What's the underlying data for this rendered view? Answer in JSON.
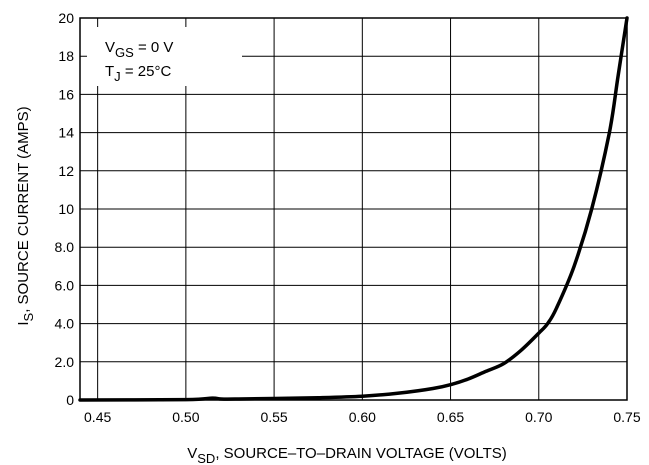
{
  "chart_data": {
    "type": "line",
    "xlabel": {
      "main": "V",
      "sub": "SD",
      "rest": ", SOURCE–TO–DRAIN VOLTAGE (VOLTS)"
    },
    "ylabel": {
      "main": "I",
      "sub": "S",
      "rest": ", SOURCE CURRENT (AMPS)"
    },
    "xlim": [
      0.44,
      0.75
    ],
    "ylim": [
      0,
      20
    ],
    "x_ticks": [
      0.45,
      0.5,
      0.55,
      0.6,
      0.65,
      0.7,
      0.75
    ],
    "x_tick_labels": [
      "0.45",
      "0.50",
      "0.55",
      "0.60",
      "0.65",
      "0.70",
      "0.75"
    ],
    "y_ticks": [
      0,
      2,
      4,
      6,
      8,
      10,
      12,
      14,
      16,
      18,
      20
    ],
    "y_tick_labels": [
      "0",
      "2.0",
      "4.0",
      "6.0",
      "8.0",
      "10",
      "12",
      "14",
      "16",
      "18",
      "20"
    ],
    "grid": true,
    "annotations": [
      {
        "main": "V",
        "sub": "GS",
        "rest": " = 0 V"
      },
      {
        "main": "T",
        "sub": "J",
        "rest": " = 25°C"
      }
    ],
    "series": [
      {
        "x": [
          0.44,
          0.5,
          0.515,
          0.52,
          0.53,
          0.55,
          0.575,
          0.6,
          0.62,
          0.64,
          0.65,
          0.66,
          0.67,
          0.68,
          0.69,
          0.7,
          0.705,
          0.71,
          0.72,
          0.73,
          0.74,
          0.745,
          0.75
        ],
        "y": [
          0.0,
          0.02,
          0.1,
          0.05,
          0.05,
          0.08,
          0.12,
          0.2,
          0.35,
          0.6,
          0.8,
          1.1,
          1.5,
          1.9,
          2.6,
          3.5,
          4.0,
          4.8,
          7.0,
          10.0,
          14.0,
          17.0,
          20.0
        ]
      }
    ]
  }
}
